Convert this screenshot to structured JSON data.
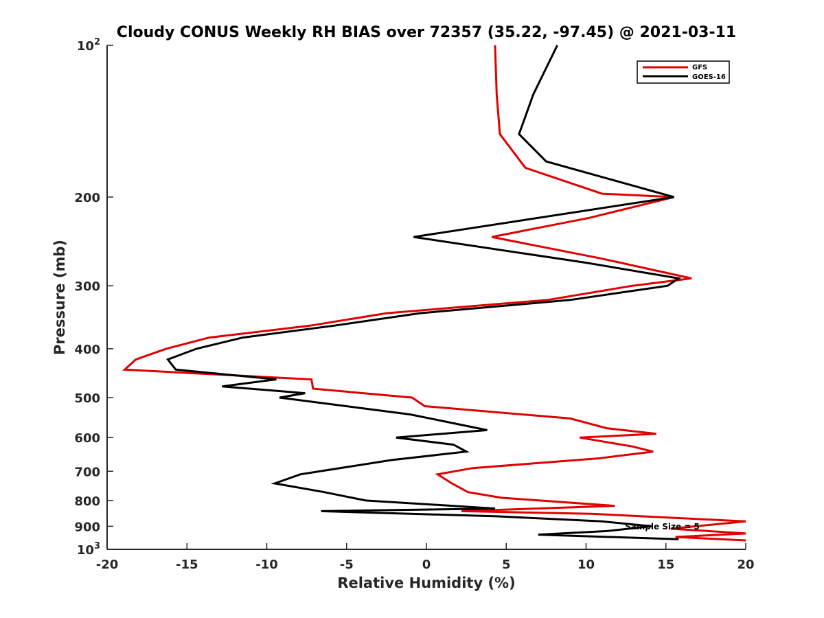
{
  "chart_data": {
    "type": "line",
    "title": "Cloudy CONUS Weekly RH BIAS over 72357 (35.22, -97.45) @ 2021-03-11",
    "xlabel": "Relative Humidity (%)",
    "ylabel": "Pressure (mb)",
    "xlim": [
      -20,
      20
    ],
    "ylim": [
      100,
      1000
    ],
    "y_scale": "log",
    "y_reversed": true,
    "grid": false,
    "legend_position": "top-right",
    "x_ticks": [
      "-20",
      "-15",
      "-10",
      "-5",
      "0",
      "5",
      "10",
      "15",
      "20"
    ],
    "y_tick_values": [
      100,
      200,
      300,
      400,
      500,
      600,
      700,
      800,
      900,
      1000
    ],
    "y_tick_labels": [
      {
        "base": "10",
        "exp": "2"
      },
      {
        "base": "200",
        "exp": ""
      },
      {
        "base": "300",
        "exp": ""
      },
      {
        "base": "400",
        "exp": ""
      },
      {
        "base": "500",
        "exp": ""
      },
      {
        "base": "600",
        "exp": ""
      },
      {
        "base": "700",
        "exp": ""
      },
      {
        "base": "800",
        "exp": ""
      },
      {
        "base": "900",
        "exp": ""
      },
      {
        "base": "10",
        "exp": "3"
      }
    ],
    "annotation": "Sample Size = 5",
    "series": [
      {
        "name": "GFS",
        "color": "#e00000",
        "points": [
          [
            4.3,
            100
          ],
          [
            4.4,
            125
          ],
          [
            4.6,
            150
          ],
          [
            6.2,
            175
          ],
          [
            11,
            197
          ],
          [
            15.5,
            200
          ],
          [
            10.2,
            220
          ],
          [
            4.1,
            240
          ],
          [
            11,
            265
          ],
          [
            16.6,
            290
          ],
          [
            12.9,
            300
          ],
          [
            7.6,
            320
          ],
          [
            -2.5,
            340
          ],
          [
            -7.3,
            360
          ],
          [
            -13.6,
            380
          ],
          [
            -16.3,
            400
          ],
          [
            -18.2,
            420
          ],
          [
            -18.9,
            440
          ],
          [
            -7.2,
            460
          ],
          [
            -7.1,
            480
          ],
          [
            -0.9,
            500
          ],
          [
            -0.1,
            520
          ],
          [
            9,
            550
          ],
          [
            11.3,
            575
          ],
          [
            14.4,
            590
          ],
          [
            9.6,
            600
          ],
          [
            12.9,
            625
          ],
          [
            14.2,
            640
          ],
          [
            10.8,
            660
          ],
          [
            2.9,
            690
          ],
          [
            0.7,
            710
          ],
          [
            1.6,
            740
          ],
          [
            2.6,
            770
          ],
          [
            4.7,
            790
          ],
          [
            11.8,
            820
          ],
          [
            2.2,
            840
          ],
          [
            10.3,
            850
          ],
          [
            20,
            880
          ],
          [
            15.3,
            910
          ],
          [
            20,
            930
          ],
          [
            15.6,
            945
          ],
          [
            20,
            960
          ]
        ]
      },
      {
        "name": "GOES-16",
        "color": "#000000",
        "points": [
          [
            8.2,
            100
          ],
          [
            6.7,
            125
          ],
          [
            5.8,
            150
          ],
          [
            7.5,
            170
          ],
          [
            15.5,
            200
          ],
          [
            -0.8,
            240
          ],
          [
            10,
            270
          ],
          [
            15.8,
            290
          ],
          [
            15.1,
            300
          ],
          [
            9,
            320
          ],
          [
            -0.4,
            340
          ],
          [
            -5.8,
            360
          ],
          [
            -11.5,
            380
          ],
          [
            -14.4,
            400
          ],
          [
            -16.2,
            420
          ],
          [
            -15.7,
            440
          ],
          [
            -9.4,
            460
          ],
          [
            -12.8,
            475
          ],
          [
            -7.6,
            490
          ],
          [
            -9.2,
            500
          ],
          [
            -1,
            540
          ],
          [
            3.8,
            580
          ],
          [
            -1.9,
            600
          ],
          [
            1.7,
            620
          ],
          [
            2.5,
            640
          ],
          [
            -2.2,
            665
          ],
          [
            -7.9,
            710
          ],
          [
            -9.5,
            740
          ],
          [
            -6.4,
            770
          ],
          [
            -3.8,
            800
          ],
          [
            1.7,
            820
          ],
          [
            4.3,
            830
          ],
          [
            -6.6,
            840
          ],
          [
            4.4,
            860
          ],
          [
            11,
            880
          ],
          [
            14.1,
            900
          ],
          [
            11.3,
            920
          ],
          [
            7,
            935
          ],
          [
            15.8,
            955
          ]
        ]
      }
    ]
  }
}
